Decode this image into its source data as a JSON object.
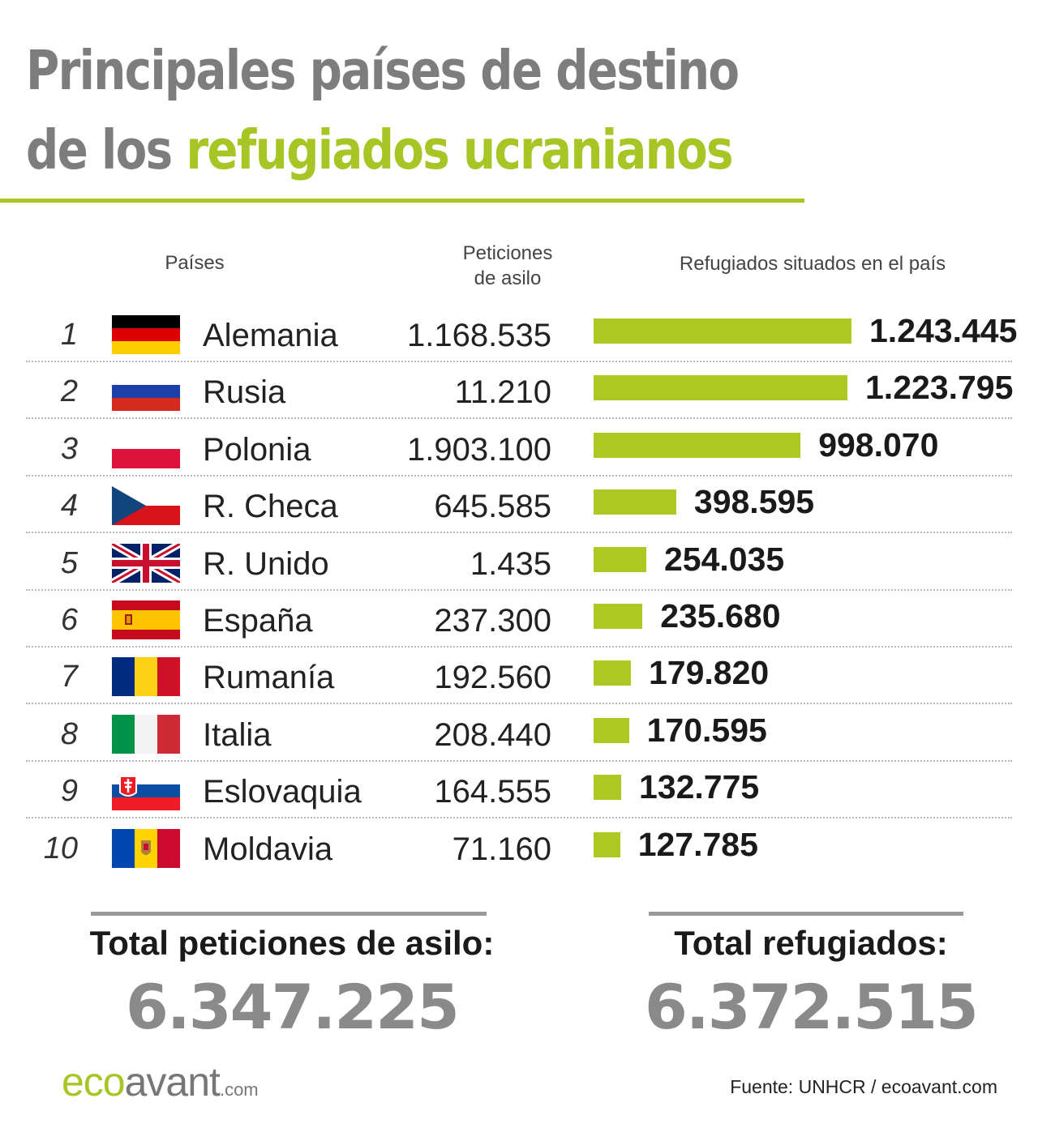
{
  "header": {
    "title_line1": "Principales países de destino",
    "title_line2_prefix": "de los ",
    "title_line2_accent": "refugiados ucranianos"
  },
  "columns": {
    "countries": "Países",
    "asylum_line1": "Peticiones",
    "asylum_line2": "de asilo",
    "refugees": "Refugiados situados en el país"
  },
  "colors": {
    "accent": "#a8c526",
    "bar": "#adc822",
    "title_gray": "#7d7d7d",
    "total_gray": "#8a8a8a"
  },
  "chart_data": {
    "type": "bar",
    "orientation": "horizontal",
    "categories": [
      "Alemania",
      "Rusia",
      "Polonia",
      "R. Checa",
      "R. Unido",
      "España",
      "Rumanía",
      "Italia",
      "Eslovaquia",
      "Moldavia"
    ],
    "ranks": [
      "1",
      "2",
      "3",
      "4",
      "5",
      "6",
      "7",
      "8",
      "9",
      "10"
    ],
    "flags": [
      "germany-flag-icon",
      "russia-flag-icon",
      "poland-flag-icon",
      "czech-flag-icon",
      "uk-flag-icon",
      "spain-flag-icon",
      "romania-flag-icon",
      "italy-flag-icon",
      "slovakia-flag-icon",
      "moldova-flag-icon"
    ],
    "asylum_requests_labels": [
      "1.168.535",
      "11.210",
      "1.903.100",
      "645.585",
      "1.435",
      "237.300",
      "192.560",
      "208.440",
      "164.555",
      "71.160"
    ],
    "asylum_requests": [
      1168535,
      11210,
      1903100,
      645585,
      1435,
      237300,
      192560,
      208440,
      164555,
      71160
    ],
    "refugees_labels": [
      "1.243.445",
      "1.223.795",
      "998.070",
      "398.595",
      "254.035",
      "235.680",
      "179.820",
      "170.595",
      "132.775",
      "127.785"
    ],
    "refugees": [
      1243445,
      1223795,
      998070,
      398595,
      254035,
      235680,
      179820,
      170595,
      132775,
      127785
    ],
    "xlim": [
      0,
      1243445
    ]
  },
  "totals": {
    "asylum_label": "Total peticiones de asilo:",
    "asylum_value": "6.347.225",
    "refugees_label": "Total refugiados:",
    "refugees_value": "6.372.515"
  },
  "footer": {
    "logo_eco": "eco",
    "logo_avant": "avant",
    "logo_com": ".com",
    "source_prefix": "Fuente: ",
    "source_text": "UNHCR / ecoavant.com"
  }
}
